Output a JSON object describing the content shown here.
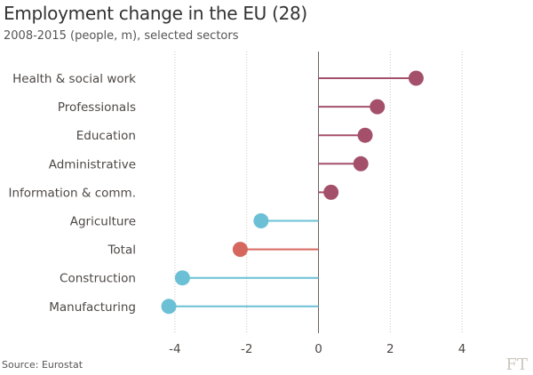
{
  "chart_data": {
    "type": "lollipop",
    "title": "Employment change in the EU (28)",
    "subtitle": "2008-2015 (people, m), selected sectors",
    "xlabel": "",
    "ylabel": "",
    "xlim": [
      -4.5,
      5
    ],
    "xticks": [
      -4,
      -2,
      0,
      2,
      4
    ],
    "xtick_labels": [
      "-4",
      "-2",
      "0",
      "2",
      "4"
    ],
    "grid": "vertical dotted",
    "categories": [
      "Health & social work",
      "Professionals",
      "Education",
      "Administrative",
      "Information & comm.",
      "Agriculture",
      "Total",
      "Construction",
      "Manufacturing"
    ],
    "values": [
      2.72,
      1.64,
      1.3,
      1.18,
      0.35,
      -1.6,
      -2.18,
      -3.79,
      -4.17
    ],
    "point_colors": [
      "#a4506a",
      "#a4506a",
      "#a4506a",
      "#a4506a",
      "#a4506a",
      "#6bc0d6",
      "#d6675f",
      "#6bc0d6",
      "#6bc0d6"
    ],
    "source": "Source: Eurostat"
  },
  "logo": "FT"
}
